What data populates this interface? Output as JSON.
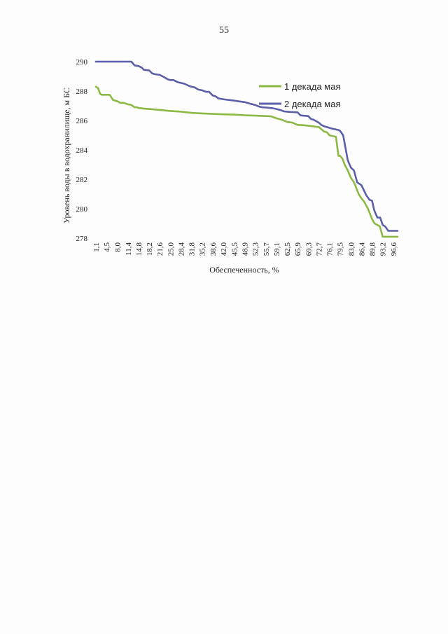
{
  "page": {
    "number": "55"
  },
  "chart_data": {
    "type": "line",
    "title": "",
    "xlabel": "Обеспеченность, %",
    "ylabel": "Уровень воды в водохранилище, м БС",
    "ylim": [
      278,
      290
    ],
    "yticks": [
      "278",
      "280",
      "282",
      "284",
      "286",
      "288",
      "290"
    ],
    "xlim": [
      1.1,
      98.0
    ],
    "xticks": [
      "1,1",
      "4,5",
      "8,0",
      "11,4",
      "14,8",
      "18,2",
      "21,6",
      "25,0",
      "28,4",
      "31,8",
      "35,2",
      "38,6",
      "42,0",
      "45,5",
      "48,9",
      "52,3",
      "55,7",
      "59,1",
      "62,5",
      "65,9",
      "69,3",
      "72,7",
      "76,1",
      "79,5",
      "83,0",
      "86,4",
      "89,8",
      "93,2",
      "96,6"
    ],
    "grid": false,
    "legend": "right",
    "series": [
      {
        "name": "1 декада мая",
        "color": "#8cb944",
        "x": [
          1.1,
          1.8,
          2.5,
          3.0,
          3.5,
          4.5,
          5.5,
          6.6,
          7.3,
          8.0,
          9.0,
          10.0,
          11.4,
          12.5,
          13.5,
          14.2,
          14.8,
          16.0,
          18.2,
          21.6,
          25.0,
          28.4,
          31.8,
          33.5,
          35.2,
          38.6,
          42.0,
          45.5,
          48.9,
          52.3,
          55.7,
          57.4,
          59.1,
          60.8,
          62.5,
          64.2,
          65.9,
          67.6,
          69.3,
          71.0,
          72.7,
          74.4,
          75.3,
          76.1,
          77.0,
          78.2,
          79.0,
          79.5,
          80.3,
          81.0,
          82.0,
          83.0,
          84.0,
          85.5,
          86.4,
          87.2,
          88.5,
          89.8,
          90.6,
          91.5,
          92.3,
          93.2,
          94.0,
          95.0,
          95.8,
          96.6,
          97.3,
          98.0
        ],
        "values": [
          288.3,
          288.2,
          287.8,
          287.75,
          287.75,
          287.75,
          287.75,
          287.4,
          287.35,
          287.3,
          287.2,
          287.2,
          287.1,
          287.05,
          286.9,
          286.9,
          286.85,
          286.82,
          286.78,
          286.72,
          286.65,
          286.6,
          286.52,
          286.5,
          286.48,
          286.45,
          286.42,
          286.4,
          286.35,
          286.33,
          286.3,
          286.28,
          286.15,
          286.05,
          285.9,
          285.85,
          285.7,
          285.68,
          285.65,
          285.6,
          285.55,
          285.25,
          285.2,
          285.0,
          284.95,
          284.9,
          283.6,
          283.6,
          283.4,
          283.0,
          282.6,
          282.1,
          281.8,
          281.0,
          280.7,
          280.5,
          280.0,
          279.3,
          279.0,
          278.9,
          278.8,
          278.1,
          278.1,
          278.1,
          278.1,
          278.1,
          278.1,
          278.1
        ]
      },
      {
        "name": "2 декада мая",
        "color": "#5b5ea8",
        "x": [
          1.1,
          4.5,
          8.0,
          11.4,
          12.5,
          13.5,
          14.8,
          15.8,
          16.5,
          18.2,
          19.2,
          20.0,
          21.6,
          23.0,
          24.2,
          25.0,
          26.0,
          27.5,
          28.4,
          29.5,
          31.0,
          31.8,
          32.8,
          34.0,
          35.2,
          36.5,
          37.5,
          38.6,
          39.5,
          40.5,
          42.0,
          43.5,
          45.5,
          47.0,
          48.9,
          50.5,
          52.3,
          53.5,
          54.5,
          55.7,
          57.0,
          58.0,
          59.1,
          60.5,
          61.5,
          62.5,
          63.5,
          64.2,
          65.9,
          66.8,
          67.6,
          69.3,
          70.2,
          71.0,
          72.7,
          73.5,
          74.5,
          76.1,
          77.0,
          78.0,
          79.0,
          79.5,
          80.5,
          82.0,
          83.0,
          84.0,
          85.0,
          86.4,
          87.3,
          88.0,
          89.0,
          89.8,
          90.5,
          91.5,
          92.4,
          93.2,
          94.0,
          95.0,
          96.0,
          96.6,
          97.3,
          98.0
        ],
        "values": [
          290.0,
          290.0,
          290.0,
          290.0,
          290.0,
          289.75,
          289.7,
          289.6,
          289.45,
          289.4,
          289.2,
          289.15,
          289.1,
          288.95,
          288.8,
          288.75,
          288.75,
          288.6,
          288.55,
          288.5,
          288.35,
          288.3,
          288.25,
          288.1,
          288.05,
          287.95,
          287.95,
          287.7,
          287.65,
          287.5,
          287.45,
          287.4,
          287.35,
          287.3,
          287.25,
          287.15,
          287.05,
          286.95,
          286.9,
          286.88,
          286.85,
          286.83,
          286.78,
          286.7,
          286.62,
          286.6,
          286.58,
          286.57,
          286.55,
          286.35,
          286.33,
          286.3,
          286.1,
          286.05,
          285.85,
          285.7,
          285.6,
          285.5,
          285.45,
          285.4,
          285.35,
          285.3,
          285.0,
          283.3,
          282.8,
          282.6,
          281.8,
          281.6,
          281.2,
          280.9,
          280.6,
          280.55,
          279.9,
          279.4,
          279.4,
          278.9,
          278.8,
          278.5,
          278.5,
          278.5,
          278.5,
          278.5
        ]
      }
    ]
  }
}
